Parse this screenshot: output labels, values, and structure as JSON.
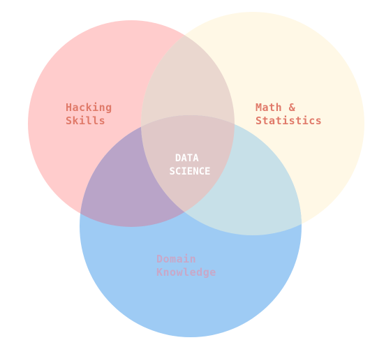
{
  "sets": [
    {
      "key": "hacking",
      "label_lines": [
        "Hacking",
        "Skills"
      ],
      "fill": "#ffcccc",
      "label_color": "#e07a6a"
    },
    {
      "key": "math",
      "label_lines": [
        "Math &",
        "Statistics"
      ],
      "fill": "#fff8e6",
      "label_color": "#e07a6a"
    },
    {
      "key": "domain",
      "label_lines": [
        "Domain",
        "Knowledge"
      ],
      "fill": "#9ecbf4",
      "label_color": "#c8a8c8"
    }
  ],
  "regions": {
    "hacking_math": "#ead7cf",
    "hacking_domain": "#b9a4c8",
    "math_domain": "#c7e0e8",
    "all_three": "#e0c8c8"
  },
  "center": {
    "label_lines": [
      "DATA",
      "SCIENCE"
    ],
    "color": "#ffffff"
  }
}
